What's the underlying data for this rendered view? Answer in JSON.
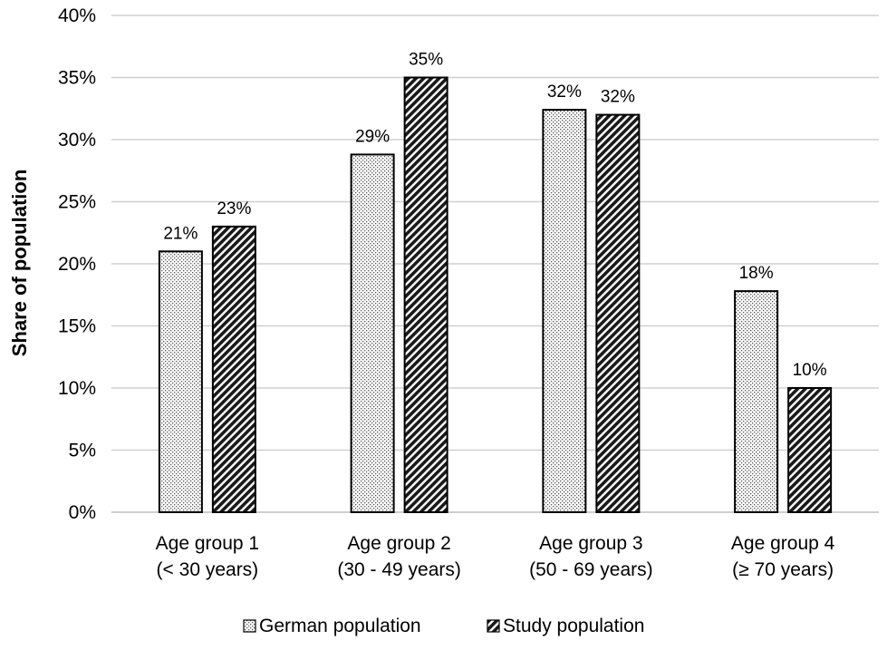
{
  "chart_data": {
    "type": "bar",
    "title": "",
    "xlabel": "",
    "ylabel": "Share of population",
    "ylim": [
      0,
      40
    ],
    "ytick_step": 5,
    "ytick_suffix": "%",
    "grid": true,
    "legend_position": "bottom",
    "categories": [
      {
        "line1": "Age group 1",
        "line2": "(< 30 years)"
      },
      {
        "line1": "Age group 2",
        "line2": "(30 - 49 years)"
      },
      {
        "line1": "Age group 3",
        "line2": "(50 - 69 years)"
      },
      {
        "line1": "Age group 4",
        "line2": "(≥ 70 years)"
      }
    ],
    "series": [
      {
        "name": "German population",
        "pattern": "dots",
        "values": [
          21,
          28.8,
          32.4,
          17.8
        ],
        "labels": [
          "21%",
          "29%",
          "32%",
          "18%"
        ]
      },
      {
        "name": "Study population",
        "pattern": "hatch",
        "values": [
          23,
          35,
          32,
          10
        ],
        "labels": [
          "23%",
          "35%",
          "32%",
          "10%"
        ]
      }
    ]
  }
}
